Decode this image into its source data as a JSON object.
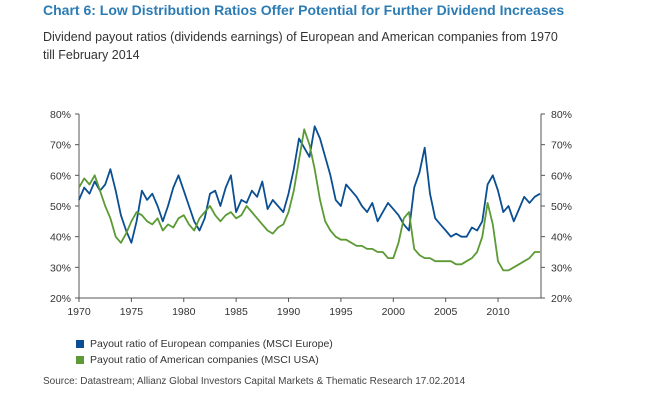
{
  "header": {
    "title": "Chart 6: Low Distribution Ratios Offer Potential for Further Dividend Increases",
    "subtitle": "Dividend payout ratios (dividends earnings) of European and American companies from 1970 till February 2014"
  },
  "source": "Source: Datastream; Allianz Global Investors Capital Markets & Thematic Research 17.02.2014",
  "colors": {
    "europe": "#0b4f93",
    "usa": "#5b9a34",
    "axis": "#555555"
  },
  "chart_data": {
    "type": "line",
    "title": "",
    "xlabel": "",
    "ylabel": "",
    "xlim": [
      1970,
      2014.1
    ],
    "ylim": [
      20,
      80
    ],
    "x_ticks": [
      "1970",
      "1975",
      "1980",
      "1985",
      "1990",
      "1995",
      "2000",
      "2005",
      "2010"
    ],
    "y_ticks_left": [
      "20%",
      "30%",
      "40%",
      "50%",
      "60%",
      "70%",
      "80%"
    ],
    "y_ticks_right": [
      "20%",
      "30%",
      "40%",
      "50%",
      "60%",
      "70%",
      "80%"
    ],
    "grid": false,
    "legend_position": "bottom-left",
    "series": [
      {
        "name": "Payout ratio of European companies (MSCI Europe)",
        "x": [
          1970,
          1970.5,
          1971,
          1971.5,
          1972,
          1972.5,
          1973,
          1973.5,
          1974,
          1974.5,
          1975,
          1975.5,
          1976,
          1976.5,
          1977,
          1977.5,
          1978,
          1978.5,
          1979,
          1979.5,
          1980,
          1980.5,
          1981,
          1981.5,
          1982,
          1982.5,
          1983,
          1983.5,
          1984,
          1984.5,
          1985,
          1985.5,
          1986,
          1986.5,
          1987,
          1987.5,
          1988,
          1988.5,
          1989,
          1989.5,
          1990,
          1990.5,
          1991,
          1991.5,
          1992,
          1992.5,
          1993,
          1993.5,
          1994,
          1994.5,
          1995,
          1995.5,
          1996,
          1996.5,
          1997,
          1997.5,
          1998,
          1998.5,
          1999,
          1999.5,
          2000,
          2000.5,
          2001,
          2001.5,
          2002,
          2002.5,
          2003,
          2003.5,
          2004,
          2004.5,
          2005,
          2005.5,
          2006,
          2006.5,
          2007,
          2007.5,
          2008,
          2008.5,
          2009,
          2009.5,
          2010,
          2010.5,
          2011,
          2011.5,
          2012,
          2012.5,
          2013,
          2013.5,
          2014
        ],
        "values": [
          52,
          56,
          54,
          58,
          55,
          57,
          62,
          55,
          47,
          42,
          38,
          45,
          55,
          52,
          54,
          50,
          45,
          50,
          56,
          60,
          55,
          50,
          45,
          42,
          46,
          54,
          55,
          50,
          56,
          60,
          48,
          52,
          51,
          55,
          53,
          58,
          49,
          52,
          50,
          48,
          54,
          62,
          72,
          69,
          66,
          76,
          72,
          66,
          60,
          52,
          50,
          57,
          55,
          53,
          50,
          48,
          51,
          45,
          48,
          51,
          49,
          47,
          44,
          42,
          56,
          61,
          69,
          54,
          46,
          44,
          42,
          40,
          41,
          40,
          40,
          43,
          42,
          45,
          57,
          60,
          55,
          48,
          50,
          45,
          49,
          53,
          51,
          53,
          54
        ]
      },
      {
        "name": "Payout ratio of American companies (MSCI USA)",
        "x": [
          1970,
          1970.5,
          1971,
          1971.5,
          1972,
          1972.5,
          1973,
          1973.5,
          1974,
          1974.5,
          1975,
          1975.5,
          1976,
          1976.5,
          1977,
          1977.5,
          1978,
          1978.5,
          1979,
          1979.5,
          1980,
          1980.5,
          1981,
          1981.5,
          1982,
          1982.5,
          1983,
          1983.5,
          1984,
          1984.5,
          1985,
          1985.5,
          1986,
          1986.5,
          1987,
          1987.5,
          1988,
          1988.5,
          1989,
          1989.5,
          1990,
          1990.5,
          1991,
          1991.5,
          1992,
          1992.5,
          1993,
          1993.5,
          1994,
          1994.5,
          1995,
          1995.5,
          1996,
          1996.5,
          1997,
          1997.5,
          1998,
          1998.5,
          1999,
          1999.5,
          2000,
          2000.5,
          2001,
          2001.5,
          2002,
          2002.5,
          2003,
          2003.5,
          2004,
          2004.5,
          2005,
          2005.5,
          2006,
          2006.5,
          2007,
          2007.5,
          2008,
          2008.5,
          2009,
          2009.5,
          2010,
          2010.5,
          2011,
          2011.5,
          2012,
          2012.5,
          2013,
          2013.5,
          2014
        ],
        "values": [
          56,
          59,
          57,
          60,
          55,
          50,
          46,
          40,
          38,
          41,
          45,
          48,
          47,
          45,
          44,
          46,
          42,
          44,
          43,
          46,
          47,
          44,
          42,
          46,
          48,
          50,
          47,
          45,
          47,
          48,
          46,
          47,
          50,
          48,
          46,
          44,
          42,
          41,
          43,
          44,
          48,
          55,
          65,
          75,
          70,
          62,
          52,
          45,
          42,
          40,
          39,
          39,
          38,
          37,
          37,
          36,
          36,
          35,
          35,
          33,
          33,
          38,
          46,
          48,
          36,
          34,
          33,
          33,
          32,
          32,
          32,
          32,
          31,
          31,
          32,
          33,
          35,
          40,
          51,
          44,
          32,
          29,
          29,
          30,
          31,
          32,
          33,
          35,
          35
        ]
      }
    ]
  }
}
